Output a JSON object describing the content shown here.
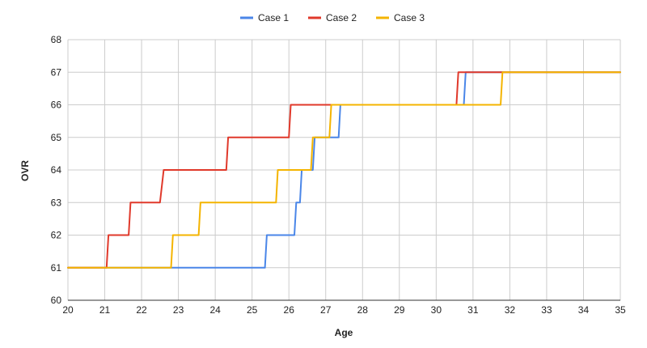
{
  "chart_data": {
    "type": "line",
    "title": "",
    "xlabel": "Age",
    "ylabel": "OVR",
    "xlim": [
      20,
      35
    ],
    "ylim": [
      60,
      68
    ],
    "x_ticks": [
      "20",
      "21",
      "22",
      "23",
      "24",
      "25",
      "26",
      "27",
      "28",
      "29",
      "30",
      "31",
      "32",
      "33",
      "34",
      "35"
    ],
    "y_ticks": [
      "60",
      "61",
      "62",
      "63",
      "64",
      "65",
      "66",
      "67",
      "68"
    ],
    "grid": true,
    "legend_position": "top-center",
    "series": [
      {
        "name": "Case 1",
        "color": "#4a86e8",
        "points": [
          [
            20,
            61
          ],
          [
            25.35,
            61
          ],
          [
            25.4,
            62
          ],
          [
            26.15,
            62
          ],
          [
            26.2,
            63
          ],
          [
            26.3,
            63
          ],
          [
            26.35,
            64
          ],
          [
            26.65,
            64
          ],
          [
            26.7,
            65
          ],
          [
            27.35,
            65
          ],
          [
            27.4,
            66
          ],
          [
            30.75,
            66
          ],
          [
            30.8,
            67
          ],
          [
            35,
            67
          ]
        ]
      },
      {
        "name": "Case 2",
        "color": "#e0392b",
        "points": [
          [
            20,
            61
          ],
          [
            21.05,
            61
          ],
          [
            21.1,
            62
          ],
          [
            21.65,
            62
          ],
          [
            21.7,
            63
          ],
          [
            22.5,
            63
          ],
          [
            22.6,
            64
          ],
          [
            24.3,
            64
          ],
          [
            24.35,
            65
          ],
          [
            26.0,
            65
          ],
          [
            26.05,
            66
          ],
          [
            30.55,
            66
          ],
          [
            30.6,
            67
          ],
          [
            35,
            67
          ]
        ]
      },
      {
        "name": "Case 3",
        "color": "#f4b400",
        "points": [
          [
            20,
            61
          ],
          [
            22.8,
            61
          ],
          [
            22.85,
            62
          ],
          [
            23.55,
            62
          ],
          [
            23.6,
            63
          ],
          [
            25.65,
            63
          ],
          [
            25.7,
            64
          ],
          [
            26.6,
            64
          ],
          [
            26.65,
            65
          ],
          [
            27.1,
            65
          ],
          [
            27.15,
            66
          ],
          [
            31.75,
            66
          ],
          [
            31.8,
            67
          ],
          [
            35,
            67
          ]
        ]
      }
    ]
  }
}
